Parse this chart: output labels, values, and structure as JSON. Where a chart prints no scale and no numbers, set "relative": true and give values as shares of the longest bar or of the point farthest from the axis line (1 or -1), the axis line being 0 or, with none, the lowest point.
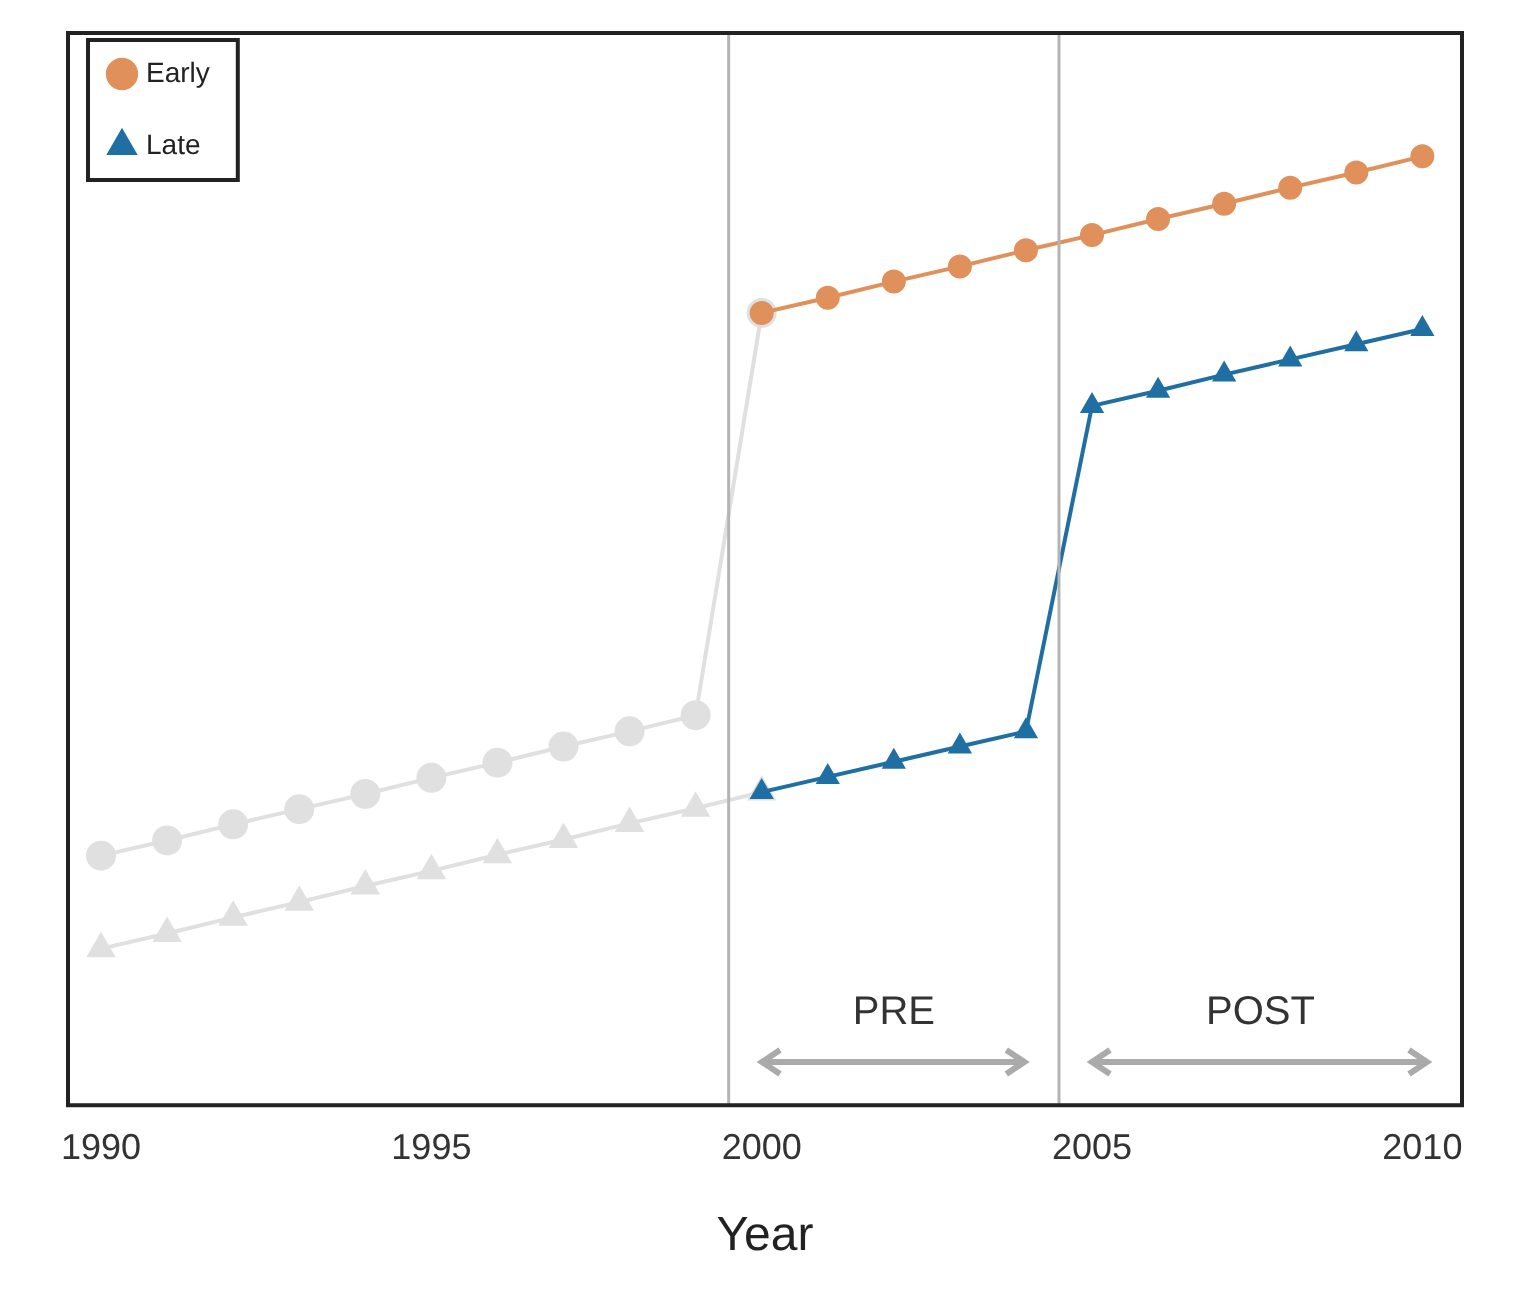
{
  "chart_data": {
    "type": "line",
    "relative": true,
    "xlabel": "Year",
    "x": [
      2000,
      2001,
      2002,
      2003,
      2004,
      2005,
      2006,
      2007,
      2008,
      2009,
      2010
    ],
    "xlim": [
      1989.5,
      2010.6
    ],
    "xticks": [
      1990,
      1995,
      2000,
      2005,
      2010
    ],
    "series": [
      {
        "name": "Early",
        "color": "#e0905a",
        "marker": "circle",
        "values": [
          0.835,
          0.851,
          0.868,
          0.884,
          0.901,
          0.917,
          0.934,
          0.95,
          0.967,
          0.983,
          1.0
        ]
      },
      {
        "name": "Late",
        "color": "#1f6fa3",
        "marker": "triangle",
        "values": [
          0.33,
          0.346,
          0.362,
          0.378,
          0.394,
          0.737,
          0.753,
          0.77,
          0.786,
          0.802,
          0.818
        ]
      },
      {
        "color": "#e0e0e0",
        "marker": "circle",
        "x": [
          1990,
          1991,
          1992,
          1993,
          1994,
          1995,
          1996,
          1997,
          1998,
          1999,
          2000
        ],
        "values": [
          0.263,
          0.279,
          0.296,
          0.312,
          0.328,
          0.345,
          0.361,
          0.378,
          0.394,
          0.411,
          0.835
        ]
      },
      {
        "color": "#e0e0e0",
        "marker": "triangle",
        "x": [
          1990,
          1991,
          1992,
          1993,
          1994,
          1995,
          1996,
          1997,
          1998,
          1999,
          2000
        ],
        "values": [
          0.165,
          0.181,
          0.198,
          0.214,
          0.231,
          0.247,
          0.264,
          0.28,
          0.297,
          0.313,
          0.33
        ]
      }
    ],
    "ref_lines": [
      {
        "axis": "x",
        "value": 1999.5,
        "color": "#b4b4b4"
      },
      {
        "axis": "x",
        "value": 2004.5,
        "color": "#b4b4b4"
      }
    ],
    "annotations": [
      "PRE",
      "POST"
    ],
    "legend": "top left",
    "grid": false
  }
}
